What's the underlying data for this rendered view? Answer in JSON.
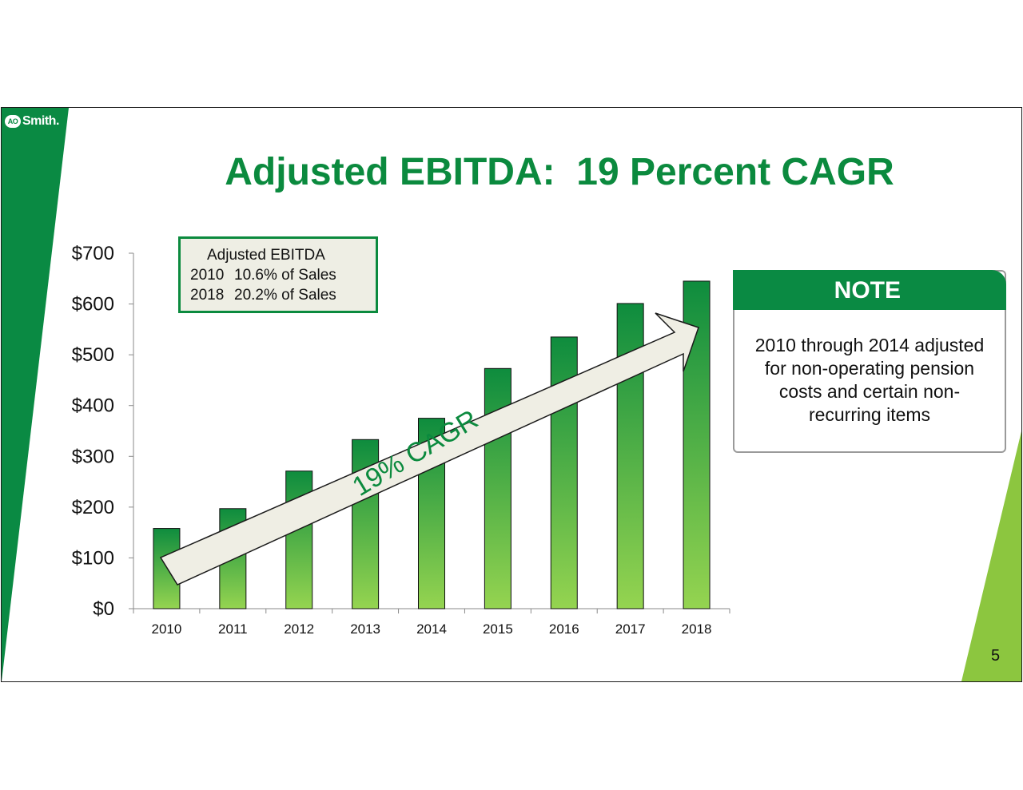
{
  "slide": {
    "title": "Adjusted EBITDA:  19 Percent CAGR",
    "logo_text": "Smith.",
    "logo_mark": "AO",
    "page_number": "5",
    "colors": {
      "brand_green": "#0a8a43",
      "light_green": "#8cc63f",
      "bar_top": "#0e8c3e",
      "bar_bottom": "#95d450"
    }
  },
  "legend": {
    "title": "Adjusted EBITDA",
    "line1_year": "2010",
    "line1_text": "10.6% of Sales",
    "line2_year": "2018",
    "line2_text": "20.2% of Sales"
  },
  "note": {
    "header": "NOTE",
    "lines": [
      "2010 through 2014 adjusted",
      "for non-operating pension",
      "costs and certain non-",
      "recurring items"
    ]
  },
  "annotation": {
    "arrow_label": "19% CAGR"
  },
  "chart_data": {
    "type": "bar",
    "categories": [
      "2010",
      "2011",
      "2012",
      "2013",
      "2014",
      "2015",
      "2016",
      "2017",
      "2018"
    ],
    "values": [
      158,
      197,
      271,
      333,
      375,
      473,
      535,
      601,
      645
    ],
    "ylim": [
      0,
      700
    ],
    "yticks": [
      0,
      100,
      200,
      300,
      400,
      500,
      600,
      700
    ],
    "ytick_labels": [
      "$0",
      "$100",
      "$200",
      "$300",
      "$400",
      "$500",
      "$600",
      "$700"
    ],
    "title": "",
    "xlabel": "",
    "ylabel": "",
    "grid": false
  }
}
